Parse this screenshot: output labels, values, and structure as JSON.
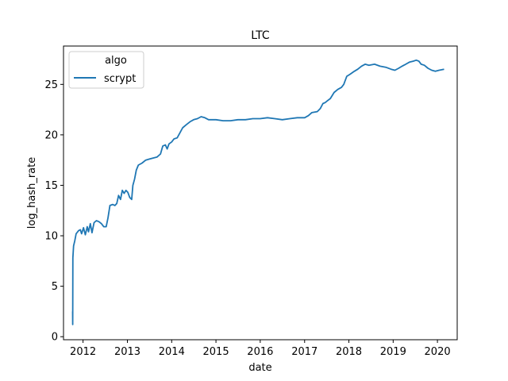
{
  "chart_data": {
    "type": "line",
    "title": "LTC",
    "xlabel": "date",
    "ylabel": "log_hash_rate",
    "xlim": [
      "2011-07-24",
      "2020-06-12"
    ],
    "ylim": [
      -0.3,
      28.8
    ],
    "xticks": [
      {
        "date": "2012-01-01",
        "label": "2012"
      },
      {
        "date": "2013-01-01",
        "label": "2013"
      },
      {
        "date": "2014-01-01",
        "label": "2014"
      },
      {
        "date": "2015-01-01",
        "label": "2015"
      },
      {
        "date": "2016-01-01",
        "label": "2016"
      },
      {
        "date": "2017-01-01",
        "label": "2017"
      },
      {
        "date": "2018-01-01",
        "label": "2018"
      },
      {
        "date": "2019-01-01",
        "label": "2019"
      },
      {
        "date": "2020-01-01",
        "label": "2020"
      }
    ],
    "yticks": [
      0,
      5,
      10,
      15,
      20,
      25
    ],
    "grid": false,
    "legend": {
      "title": "algo",
      "position": "top-left"
    },
    "colors": {
      "scrypt": "#1f77b4"
    },
    "series": [
      {
        "name": "scrypt",
        "points": [
          [
            "2011-10-07",
            2.5
          ],
          [
            "2011-10-08",
            1.2
          ],
          [
            "2011-10-09",
            7.8
          ],
          [
            "2011-10-15",
            9.0
          ],
          [
            "2011-10-25",
            9.5
          ],
          [
            "2011-11-05",
            10.2
          ],
          [
            "2011-11-25",
            10.5
          ],
          [
            "2011-12-10",
            10.6
          ],
          [
            "2011-12-20",
            10.2
          ],
          [
            "2012-01-05",
            10.8
          ],
          [
            "2012-01-20",
            10.1
          ],
          [
            "2012-02-05",
            10.9
          ],
          [
            "2012-02-15",
            10.4
          ],
          [
            "2012-03-01",
            11.2
          ],
          [
            "2012-03-15",
            10.3
          ],
          [
            "2012-04-01",
            11.3
          ],
          [
            "2012-04-20",
            11.5
          ],
          [
            "2012-05-10",
            11.4
          ],
          [
            "2012-06-01",
            11.2
          ],
          [
            "2012-06-20",
            10.9
          ],
          [
            "2012-07-10",
            10.9
          ],
          [
            "2012-07-25",
            11.8
          ],
          [
            "2012-08-10",
            13.0
          ],
          [
            "2012-09-01",
            13.1
          ],
          [
            "2012-09-20",
            13.0
          ],
          [
            "2012-10-05",
            13.2
          ],
          [
            "2012-10-20",
            14.0
          ],
          [
            "2012-11-05",
            13.6
          ],
          [
            "2012-11-20",
            14.5
          ],
          [
            "2012-12-05",
            14.2
          ],
          [
            "2012-12-20",
            14.5
          ],
          [
            "2013-01-05",
            14.3
          ],
          [
            "2013-01-20",
            13.8
          ],
          [
            "2013-02-05",
            13.6
          ],
          [
            "2013-02-15",
            15.0
          ],
          [
            "2013-03-01",
            15.6
          ],
          [
            "2013-03-15",
            16.5
          ],
          [
            "2013-04-01",
            17.0
          ],
          [
            "2013-05-01",
            17.2
          ],
          [
            "2013-06-01",
            17.5
          ],
          [
            "2013-07-01",
            17.6
          ],
          [
            "2013-08-01",
            17.7
          ],
          [
            "2013-09-01",
            17.8
          ],
          [
            "2013-10-01",
            18.1
          ],
          [
            "2013-10-20",
            18.9
          ],
          [
            "2013-11-10",
            19.0
          ],
          [
            "2013-11-25",
            18.6
          ],
          [
            "2013-12-10",
            19.1
          ],
          [
            "2014-01-01",
            19.3
          ],
          [
            "2014-01-20",
            19.6
          ],
          [
            "2014-02-15",
            19.7
          ],
          [
            "2014-03-10",
            20.2
          ],
          [
            "2014-04-01",
            20.7
          ],
          [
            "2014-05-01",
            21.0
          ],
          [
            "2014-06-01",
            21.3
          ],
          [
            "2014-07-01",
            21.5
          ],
          [
            "2014-08-01",
            21.6
          ],
          [
            "2014-09-01",
            21.8
          ],
          [
            "2014-10-01",
            21.7
          ],
          [
            "2014-11-01",
            21.5
          ],
          [
            "2014-12-01",
            21.5
          ],
          [
            "2015-01-01",
            21.5
          ],
          [
            "2015-03-01",
            21.4
          ],
          [
            "2015-05-01",
            21.4
          ],
          [
            "2015-07-01",
            21.5
          ],
          [
            "2015-09-01",
            21.5
          ],
          [
            "2015-11-01",
            21.6
          ],
          [
            "2016-01-01",
            21.6
          ],
          [
            "2016-03-01",
            21.7
          ],
          [
            "2016-05-01",
            21.6
          ],
          [
            "2016-07-01",
            21.5
          ],
          [
            "2016-09-01",
            21.6
          ],
          [
            "2016-11-01",
            21.7
          ],
          [
            "2017-01-01",
            21.7
          ],
          [
            "2017-02-01",
            21.9
          ],
          [
            "2017-03-01",
            22.2
          ],
          [
            "2017-04-15",
            22.3
          ],
          [
            "2017-05-10",
            22.6
          ],
          [
            "2017-06-01",
            23.1
          ],
          [
            "2017-06-20",
            23.2
          ],
          [
            "2017-07-10",
            23.4
          ],
          [
            "2017-08-01",
            23.6
          ],
          [
            "2017-09-01",
            24.2
          ],
          [
            "2017-10-01",
            24.5
          ],
          [
            "2017-11-01",
            24.7
          ],
          [
            "2017-11-20",
            25.0
          ],
          [
            "2017-12-15",
            25.8
          ],
          [
            "2018-01-10",
            26.0
          ],
          [
            "2018-02-15",
            26.3
          ],
          [
            "2018-03-15",
            26.5
          ],
          [
            "2018-04-15",
            26.8
          ],
          [
            "2018-05-15",
            27.0
          ],
          [
            "2018-06-15",
            26.9
          ],
          [
            "2018-08-01",
            27.0
          ],
          [
            "2018-09-15",
            26.8
          ],
          [
            "2018-11-01",
            26.7
          ],
          [
            "2018-12-15",
            26.5
          ],
          [
            "2019-01-15",
            26.4
          ],
          [
            "2019-02-15",
            26.6
          ],
          [
            "2019-03-15",
            26.8
          ],
          [
            "2019-04-15",
            27.0
          ],
          [
            "2019-05-15",
            27.2
          ],
          [
            "2019-06-15",
            27.3
          ],
          [
            "2019-07-10",
            27.4
          ],
          [
            "2019-08-01",
            27.3
          ],
          [
            "2019-08-20",
            27.0
          ],
          [
            "2019-09-15",
            26.9
          ],
          [
            "2019-10-15",
            26.6
          ],
          [
            "2019-11-15",
            26.4
          ],
          [
            "2019-12-15",
            26.3
          ],
          [
            "2020-01-15",
            26.4
          ],
          [
            "2020-02-25",
            26.5
          ]
        ]
      }
    ]
  }
}
